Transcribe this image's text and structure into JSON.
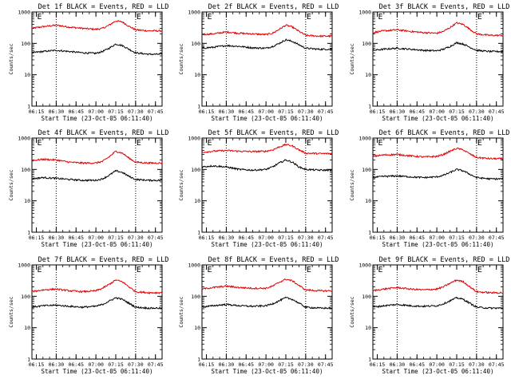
{
  "colors": {
    "events": "#000000",
    "lld": "#e00000"
  },
  "chart_data": [
    {
      "type": "line",
      "title": "Det 1f BLACK = Events, RED = LLD",
      "xlabel": "Start Time (23-Oct-05 06:11:40)",
      "ylabel": "Counts/sec",
      "x_ticks": [
        "06:15",
        "06:30",
        "06:45",
        "07:00",
        "07:15",
        "07:30",
        "07:45"
      ],
      "y_ticks": [
        "1",
        "10",
        "100",
        "1000"
      ],
      "yscale": "log",
      "ylim": [
        1,
        1000
      ],
      "marker_times": [
        "06:30",
        "07:30"
      ],
      "flag_times": [
        "06:15",
        "07:30"
      ],
      "flag_label": "E",
      "series": [
        {
          "color": "#e00000",
          "x": [
            "06:11",
            "06:20",
            "06:30",
            "06:40",
            "06:50",
            "07:00",
            "07:05",
            "07:10",
            "07:15",
            "07:20",
            "07:25",
            "07:30",
            "07:40",
            "07:50"
          ],
          "y": [
            300,
            340,
            380,
            330,
            300,
            280,
            300,
            380,
            520,
            480,
            350,
            270,
            250,
            250
          ]
        },
        {
          "color": "#000000",
          "x": [
            "06:11",
            "06:20",
            "06:30",
            "06:40",
            "06:50",
            "07:00",
            "07:05",
            "07:10",
            "07:15",
            "07:20",
            "07:25",
            "07:30",
            "07:40",
            "07:50"
          ],
          "y": [
            50,
            55,
            60,
            55,
            50,
            48,
            55,
            70,
            95,
            85,
            65,
            50,
            45,
            45
          ]
        }
      ]
    },
    {
      "type": "line",
      "title": "Det 2f BLACK = Events, RED = LLD",
      "xlabel": "Start Time (23-Oct-05 06:11:40)",
      "ylabel": "Counts/sec",
      "x_ticks": [
        "06:15",
        "06:30",
        "06:45",
        "07:00",
        "07:15",
        "07:30",
        "07:45"
      ],
      "y_ticks": [
        "1",
        "10",
        "100",
        "1000"
      ],
      "yscale": "log",
      "ylim": [
        1,
        1000
      ],
      "marker_times": [
        "06:30",
        "07:30"
      ],
      "flag_times": [
        "06:15",
        "07:30"
      ],
      "flag_label": "E",
      "series": [
        {
          "color": "#e00000",
          "x": [
            "06:11",
            "06:20",
            "06:30",
            "06:40",
            "06:50",
            "07:00",
            "07:05",
            "07:10",
            "07:15",
            "07:20",
            "07:25",
            "07:30",
            "07:40",
            "07:50"
          ],
          "y": [
            190,
            200,
            230,
            210,
            200,
            190,
            210,
            280,
            380,
            330,
            240,
            180,
            170,
            170
          ]
        },
        {
          "color": "#000000",
          "x": [
            "06:11",
            "06:20",
            "06:30",
            "06:40",
            "06:50",
            "07:00",
            "07:05",
            "07:10",
            "07:15",
            "07:20",
            "07:25",
            "07:30",
            "07:40",
            "07:50"
          ],
          "y": [
            70,
            75,
            85,
            80,
            72,
            70,
            80,
            100,
            130,
            115,
            90,
            70,
            65,
            65
          ]
        }
      ]
    },
    {
      "type": "line",
      "title": "Det 3f BLACK = Events, RED = LLD",
      "xlabel": "Start Time (23-Oct-05 06:11:40)",
      "ylabel": "Counts/sec",
      "x_ticks": [
        "06:15",
        "06:30",
        "06:45",
        "07:00",
        "07:15",
        "07:30",
        "07:45"
      ],
      "y_ticks": [
        "1",
        "10",
        "100",
        "1000"
      ],
      "yscale": "log",
      "ylim": [
        1,
        1000
      ],
      "marker_times": [
        "06:30",
        "07:30"
      ],
      "flag_times": [
        "06:15",
        "07:30"
      ],
      "flag_label": "E",
      "series": [
        {
          "color": "#e00000",
          "x": [
            "06:11",
            "06:20",
            "06:30",
            "06:40",
            "06:50",
            "07:00",
            "07:05",
            "07:10",
            "07:15",
            "07:20",
            "07:25",
            "07:30",
            "07:40",
            "07:50"
          ],
          "y": [
            220,
            250,
            270,
            240,
            220,
            210,
            240,
            320,
            450,
            400,
            280,
            200,
            180,
            180
          ]
        },
        {
          "color": "#000000",
          "x": [
            "06:11",
            "06:20",
            "06:30",
            "06:40",
            "06:50",
            "07:00",
            "07:05",
            "07:10",
            "07:15",
            "07:20",
            "07:25",
            "07:30",
            "07:40",
            "07:50"
          ],
          "y": [
            60,
            65,
            70,
            65,
            60,
            58,
            65,
            80,
            105,
            95,
            75,
            60,
            55,
            55
          ]
        }
      ]
    },
    {
      "type": "line",
      "title": "Det 4f BLACK = Events, RED = LLD",
      "xlabel": "Start Time (23-Oct-05 06:11:40)",
      "ylabel": "Counts/sec",
      "x_ticks": [
        "06:15",
        "06:30",
        "06:45",
        "07:00",
        "07:15",
        "07:30",
        "07:45"
      ],
      "y_ticks": [
        "1",
        "10",
        "100",
        "1000"
      ],
      "yscale": "log",
      "ylim": [
        1,
        1000
      ],
      "marker_times": [
        "06:30",
        "07:30"
      ],
      "flag_times": [
        "06:15",
        "07:30"
      ],
      "flag_label": "E",
      "series": [
        {
          "color": "#e00000",
          "x": [
            "06:11",
            "06:20",
            "06:30",
            "06:40",
            "06:50",
            "07:00",
            "07:05",
            "07:10",
            "07:15",
            "07:20",
            "07:25",
            "07:30",
            "07:40",
            "07:50"
          ],
          "y": [
            190,
            210,
            200,
            170,
            160,
            160,
            180,
            250,
            380,
            330,
            230,
            170,
            160,
            160
          ]
        },
        {
          "color": "#000000",
          "x": [
            "06:11",
            "06:20",
            "06:30",
            "06:40",
            "06:50",
            "07:00",
            "07:05",
            "07:10",
            "07:15",
            "07:20",
            "07:25",
            "07:30",
            "07:40",
            "07:50"
          ],
          "y": [
            50,
            55,
            52,
            48,
            45,
            45,
            50,
            65,
            90,
            80,
            60,
            48,
            45,
            45
          ]
        }
      ]
    },
    {
      "type": "line",
      "title": "Det 5f BLACK = Events, RED = LLD",
      "xlabel": "Start Time (23-Oct-05 06:11:40)",
      "ylabel": "Counts/sec",
      "x_ticks": [
        "06:15",
        "06:30",
        "06:45",
        "07:00",
        "07:15",
        "07:30",
        "07:45"
      ],
      "y_ticks": [
        "1",
        "10",
        "100",
        "1000"
      ],
      "yscale": "log",
      "ylim": [
        1,
        1000
      ],
      "marker_times": [
        "06:30",
        "07:30"
      ],
      "flag_times": [
        "06:15",
        "07:30"
      ],
      "flag_label": "E",
      "series": [
        {
          "color": "#e00000",
          "x": [
            "06:11",
            "06:20",
            "06:30",
            "06:40",
            "06:50",
            "07:00",
            "07:05",
            "07:10",
            "07:15",
            "07:20",
            "07:25",
            "07:30",
            "07:40",
            "07:50"
          ],
          "y": [
            350,
            380,
            400,
            380,
            370,
            380,
            420,
            520,
            620,
            560,
            420,
            330,
            320,
            320
          ]
        },
        {
          "color": "#000000",
          "x": [
            "06:11",
            "06:20",
            "06:30",
            "06:40",
            "06:50",
            "07:00",
            "07:05",
            "07:10",
            "07:15",
            "07:20",
            "07:25",
            "07:30",
            "07:40",
            "07:50"
          ],
          "y": [
            120,
            130,
            120,
            100,
            95,
            100,
            120,
            160,
            200,
            170,
            120,
            100,
            95,
            95
          ]
        }
      ]
    },
    {
      "type": "line",
      "title": "Det 6f BLACK = Events, RED = LLD",
      "xlabel": "Start Time (23-Oct-05 06:11:40)",
      "ylabel": "Counts/sec",
      "x_ticks": [
        "06:15",
        "06:30",
        "06:45",
        "07:00",
        "07:15",
        "07:30",
        "07:45"
      ],
      "y_ticks": [
        "1",
        "10",
        "100",
        "1000"
      ],
      "yscale": "log",
      "ylim": [
        1,
        1000
      ],
      "marker_times": [
        "06:30",
        "07:30"
      ],
      "flag_times": [
        "06:15",
        "07:30"
      ],
      "flag_label": "E",
      "series": [
        {
          "color": "#e00000",
          "x": [
            "06:11",
            "06:20",
            "06:30",
            "06:40",
            "06:50",
            "07:00",
            "07:05",
            "07:10",
            "07:15",
            "07:20",
            "07:25",
            "07:30",
            "07:40",
            "07:50"
          ],
          "y": [
            260,
            290,
            300,
            270,
            250,
            260,
            300,
            380,
            470,
            420,
            310,
            240,
            220,
            220
          ]
        },
        {
          "color": "#000000",
          "x": [
            "06:11",
            "06:20",
            "06:30",
            "06:40",
            "06:50",
            "07:00",
            "07:05",
            "07:10",
            "07:15",
            "07:20",
            "07:25",
            "07:30",
            "07:40",
            "07:50"
          ],
          "y": [
            55,
            60,
            62,
            58,
            55,
            58,
            65,
            80,
            100,
            90,
            70,
            55,
            50,
            50
          ]
        }
      ]
    },
    {
      "type": "line",
      "title": "Det 7f BLACK = Events, RED = LLD",
      "xlabel": "Start Time (23-Oct-05 06:11:40)",
      "ylabel": "Counts/sec",
      "x_ticks": [
        "06:15",
        "06:30",
        "06:45",
        "07:00",
        "07:15",
        "07:30",
        "07:45"
      ],
      "y_ticks": [
        "1",
        "10",
        "100",
        "1000"
      ],
      "yscale": "log",
      "ylim": [
        1,
        1000
      ],
      "marker_times": [
        "06:30",
        "07:30"
      ],
      "flag_times": [
        "06:15",
        "07:30"
      ],
      "flag_label": "E",
      "series": [
        {
          "color": "#e00000",
          "x": [
            "06:11",
            "06:20",
            "06:30",
            "06:40",
            "06:50",
            "07:00",
            "07:05",
            "07:10",
            "07:15",
            "07:20",
            "07:25",
            "07:30",
            "07:40",
            "07:50"
          ],
          "y": [
            140,
            160,
            170,
            150,
            140,
            150,
            180,
            240,
            330,
            290,
            200,
            140,
            130,
            130
          ]
        },
        {
          "color": "#000000",
          "x": [
            "06:11",
            "06:20",
            "06:30",
            "06:40",
            "06:50",
            "07:00",
            "07:05",
            "07:10",
            "07:15",
            "07:20",
            "07:25",
            "07:30",
            "07:40",
            "07:50"
          ],
          "y": [
            45,
            50,
            52,
            48,
            45,
            48,
            55,
            70,
            90,
            80,
            60,
            45,
            42,
            42
          ]
        }
      ]
    },
    {
      "type": "line",
      "title": "Det 8f BLACK = Events, RED = LLD",
      "xlabel": "Start Time (23-Oct-05 06:11:40)",
      "ylabel": "Counts/sec",
      "x_ticks": [
        "06:15",
        "06:30",
        "06:45",
        "07:00",
        "07:15",
        "07:30",
        "07:45"
      ],
      "y_ticks": [
        "1",
        "10",
        "100",
        "1000"
      ],
      "yscale": "log",
      "ylim": [
        1,
        1000
      ],
      "marker_times": [
        "06:30",
        "07:30"
      ],
      "flag_times": [
        "06:15",
        "07:30"
      ],
      "flag_label": "E",
      "series": [
        {
          "color": "#e00000",
          "x": [
            "06:11",
            "06:20",
            "06:30",
            "06:40",
            "06:50",
            "07:00",
            "07:05",
            "07:10",
            "07:15",
            "07:20",
            "07:25",
            "07:30",
            "07:40",
            "07:50"
          ],
          "y": [
            170,
            190,
            210,
            190,
            180,
            180,
            210,
            280,
            350,
            310,
            220,
            160,
            150,
            150
          ]
        },
        {
          "color": "#000000",
          "x": [
            "06:11",
            "06:20",
            "06:30",
            "06:40",
            "06:50",
            "07:00",
            "07:05",
            "07:10",
            "07:15",
            "07:20",
            "07:25",
            "07:30",
            "07:40",
            "07:50"
          ],
          "y": [
            45,
            50,
            55,
            50,
            48,
            50,
            58,
            72,
            90,
            80,
            60,
            45,
            42,
            42
          ]
        }
      ]
    },
    {
      "type": "line",
      "title": "Det 9f BLACK = Events, RED = LLD",
      "xlabel": "Start Time (23-Oct-05 06:11:40)",
      "ylabel": "Counts/sec",
      "x_ticks": [
        "06:15",
        "06:30",
        "06:45",
        "07:00",
        "07:15",
        "07:30",
        "07:45"
      ],
      "y_ticks": [
        "1",
        "10",
        "100",
        "1000"
      ],
      "yscale": "log",
      "ylim": [
        1,
        1000
      ],
      "marker_times": [
        "06:30",
        "07:30"
      ],
      "flag_times": [
        "06:15",
        "07:30"
      ],
      "flag_label": "E",
      "series": [
        {
          "color": "#e00000",
          "x": [
            "06:11",
            "06:20",
            "06:30",
            "06:40",
            "06:50",
            "07:00",
            "07:05",
            "07:10",
            "07:15",
            "07:20",
            "07:25",
            "07:30",
            "07:40",
            "07:50"
          ],
          "y": [
            150,
            170,
            190,
            170,
            160,
            170,
            200,
            260,
            330,
            290,
            200,
            140,
            130,
            130
          ]
        },
        {
          "color": "#000000",
          "x": [
            "06:11",
            "06:20",
            "06:30",
            "06:40",
            "06:50",
            "07:00",
            "07:05",
            "07:10",
            "07:15",
            "07:20",
            "07:25",
            "07:30",
            "07:40",
            "07:50"
          ],
          "y": [
            45,
            50,
            55,
            50,
            48,
            50,
            58,
            72,
            90,
            80,
            60,
            45,
            42,
            42
          ]
        }
      ]
    }
  ]
}
